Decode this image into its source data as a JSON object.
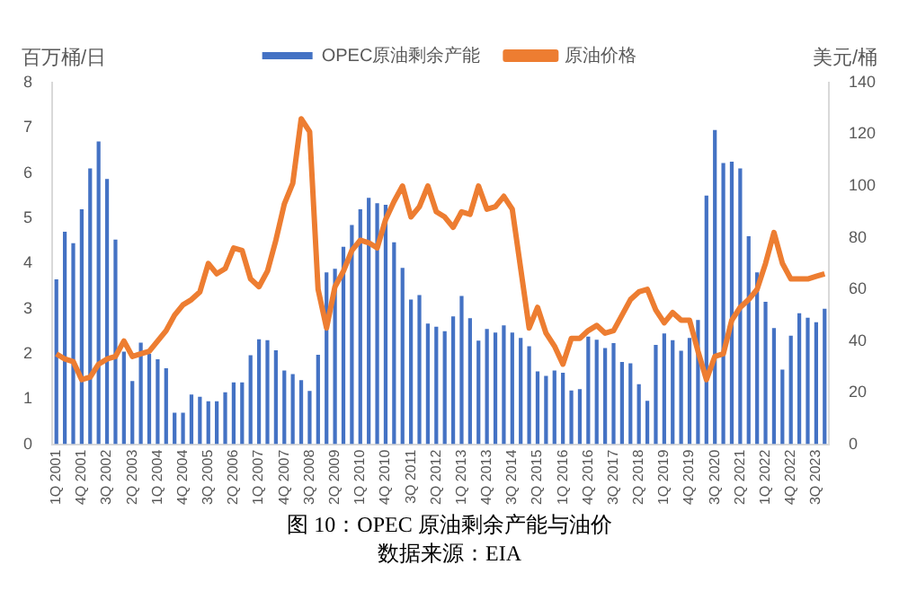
{
  "chart_data": {
    "type": "bar",
    "title": "图 10：OPEC 原油剩余产能与油价",
    "annotations": [
      "数据来源：EIA"
    ],
    "ylabel": "百万桶/日",
    "y2label": "美元/桶",
    "categories": [
      "1Q 2001",
      null,
      null,
      "4Q 2001",
      null,
      null,
      "3Q 2002",
      null,
      null,
      "2Q 2003",
      null,
      null,
      "1Q 2004",
      null,
      null,
      "4Q 2004",
      null,
      null,
      "3Q 2005",
      null,
      null,
      "2Q 2006",
      null,
      null,
      "1Q 2007",
      null,
      null,
      "4Q 2007",
      null,
      null,
      "3Q 2008",
      null,
      null,
      "2Q 2009",
      null,
      null,
      "1Q 2010",
      null,
      null,
      "4Q 2010",
      null,
      null,
      "3Q 2011",
      null,
      null,
      "2Q 2012",
      null,
      null,
      "1Q 2013",
      null,
      null,
      "4Q 2013",
      null,
      null,
      "3Q 2014",
      null,
      null,
      "2Q 2015",
      null,
      null,
      "1Q 2016",
      null,
      null,
      "4Q 2016",
      null,
      null,
      "3Q 2017",
      null,
      null,
      "2Q 2018",
      null,
      null,
      "1Q 2019",
      null,
      null,
      "4Q 2019",
      null,
      null,
      "3Q 2020",
      null,
      null,
      "2Q 2021",
      null,
      null,
      "1Q 2022",
      null,
      null,
      "4Q 2022",
      null,
      null,
      "3Q 2023",
      null
    ],
    "series": [
      {
        "name": "OPEC原油剩余产能",
        "color": "#4472c4",
        "values": [
          3.65,
          4.7,
          4.45,
          5.2,
          6.1,
          6.7,
          5.87,
          4.53,
          2.05,
          1.4,
          2.25,
          2.0,
          1.88,
          1.68,
          0.7,
          0.7,
          1.1,
          1.05,
          0.95,
          0.95,
          1.15,
          1.37,
          1.37,
          1.97,
          2.32,
          2.3,
          2.08,
          1.63,
          1.55,
          1.42,
          1.18,
          1.98,
          3.8,
          3.88,
          4.37,
          4.85,
          5.2,
          5.45,
          5.33,
          5.3,
          4.47,
          3.9,
          3.2,
          3.3,
          2.67,
          2.6,
          2.5,
          2.83,
          3.28,
          2.79,
          2.29,
          2.55,
          2.47,
          2.63,
          2.47,
          2.35,
          2.17,
          1.61,
          1.51,
          1.63,
          1.58,
          1.19,
          1.22,
          2.38,
          2.31,
          2.13,
          2.24,
          1.82,
          1.79,
          1.33,
          0.96,
          2.2,
          2.45,
          2.3,
          2.07,
          2.35,
          2.75,
          5.5,
          6.95,
          6.22,
          6.25,
          6.1,
          4.6,
          3.8,
          3.15,
          2.57,
          1.65,
          2.4,
          2.9,
          2.8,
          2.7,
          3.0
        ]
      },
      {
        "name": "原油价格",
        "type": "line",
        "axis": "y2",
        "color": "#ed7d31",
        "values": [
          35,
          33,
          32,
          25,
          26,
          31,
          33,
          34,
          40,
          34,
          35,
          36,
          40,
          44,
          50,
          54,
          56,
          59,
          70,
          66,
          68,
          76,
          75,
          64,
          61,
          67,
          79,
          93,
          101,
          126,
          121,
          60,
          45,
          61,
          67,
          75,
          79,
          78,
          76,
          87,
          94,
          100,
          88,
          92,
          100,
          90,
          88,
          84,
          90,
          89,
          100,
          91,
          92,
          96,
          91,
          68,
          45,
          53,
          43,
          38,
          31,
          41,
          41,
          44,
          46,
          43,
          44,
          50,
          56,
          59,
          60,
          52,
          47,
          51,
          48,
          48,
          36,
          25,
          34,
          35,
          48,
          53,
          56,
          60,
          70,
          82,
          70,
          64,
          64,
          64,
          65,
          66
        ]
      }
    ],
    "ylim": [
      0,
      8
    ],
    "yticks": [
      0,
      1,
      2,
      3,
      4,
      5,
      6,
      7,
      8
    ],
    "y2lim": [
      0,
      140
    ],
    "y2ticks": [
      0,
      20,
      40,
      60,
      80,
      100,
      120,
      140
    ],
    "legend": "top",
    "grid": false,
    "marker": "none"
  }
}
